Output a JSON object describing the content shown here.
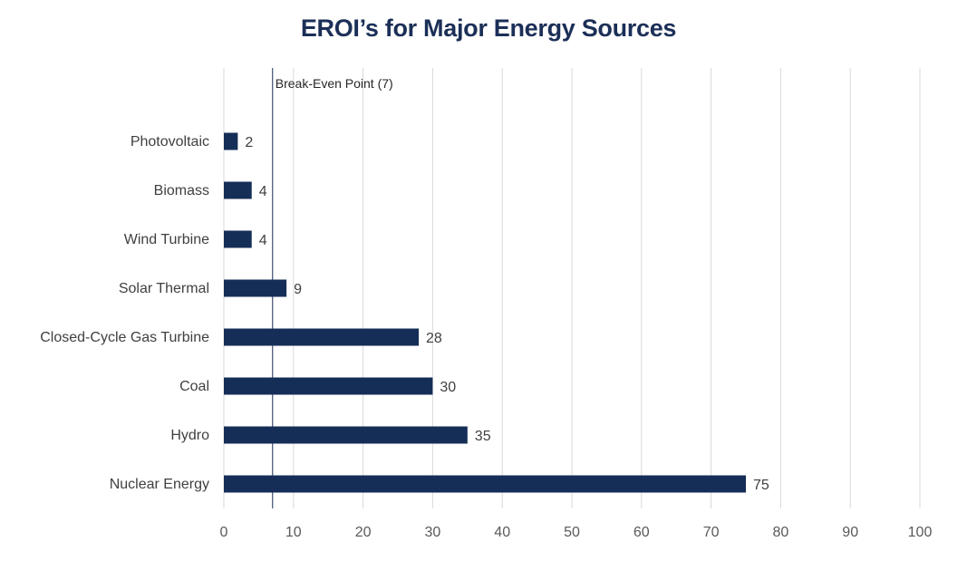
{
  "chart_data": {
    "type": "bar",
    "orientation": "horizontal",
    "title": "EROI’s for Major Energy Sources",
    "categories": [
      "Photovoltaic",
      "Biomass",
      "Wind Turbine",
      "Solar Thermal",
      "Closed-Cycle Gas Turbine",
      "Coal",
      "Hydro",
      "Nuclear Energy"
    ],
    "values": [
      2,
      4,
      4,
      9,
      28,
      30,
      35,
      75
    ],
    "data_labels": [
      "2",
      "4",
      "4",
      "9",
      "28",
      "30",
      "35",
      "75"
    ],
    "xlim": [
      0,
      100
    ],
    "x_ticks": [
      0,
      10,
      20,
      30,
      40,
      50,
      60,
      70,
      80,
      90,
      100
    ],
    "x_tick_labels": [
      "0",
      "10",
      "20",
      "30",
      "40",
      "50",
      "60",
      "70",
      "80",
      "90",
      "100"
    ],
    "grid": "vertical",
    "reference_line": {
      "value": 7,
      "label": "Break-Even Point (7)"
    },
    "colors": {
      "bar": "#152e57",
      "grid": "#d9d9d9",
      "reference_line": "#1b2f57",
      "title": "#1b2f57"
    }
  }
}
